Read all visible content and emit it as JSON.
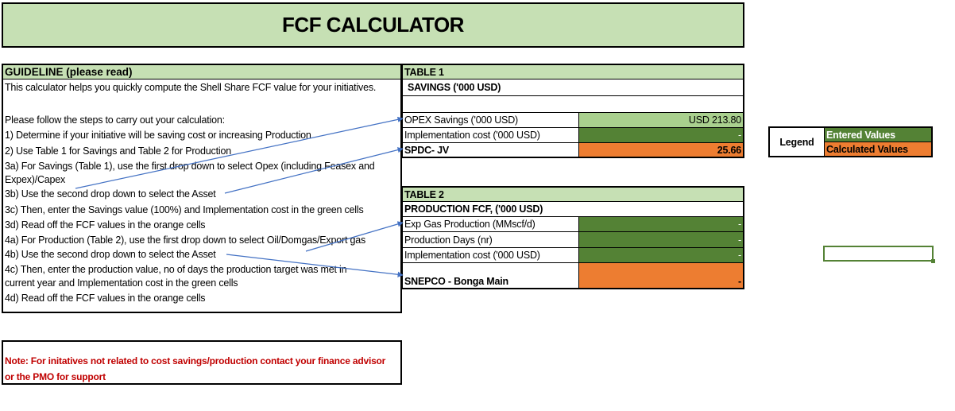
{
  "title": "FCF CALCULATOR",
  "guideline": {
    "header": "GUIDELINE (please read)",
    "lines": [
      "This calculator helps you quickly compute the Shell Share FCF value for your initiatives.",
      "Please follow the steps to carry out your calculation:",
      "1) Determine if your initiative will be saving cost or increasing Production",
      "2) Use Table 1 for Savings and Table 2 for Production",
      "3a) For Savings (Table 1), use the first drop down to select Opex (including Feasex and",
      "Expex)/Capex",
      "3b) Use the second drop down to select the Asset",
      "3c) Then, enter the Savings value (100%) and Implementation cost in the green cells",
      "3d) Read off the FCF values in the orange cells",
      "4a) For Production (Table 2), use the first drop down to select Oil/Domgas/Export gas",
      "4b) Use the second drop down to select the Asset",
      "4c) Then, enter the production value, no of days the production target was met in",
      "current year and Implementation cost in the green cells",
      "4d) Read off the FCF values in the orange cells"
    ]
  },
  "note": {
    "line1": "Note: For initatives not related to cost savings/production contact your finance advisor",
    "line2": "or the PMO for support"
  },
  "table1": {
    "title": "TABLE 1",
    "subtitle": "SAVINGS ('000 USD)",
    "rows": [
      {
        "label": "OPEX Savings ('000 USD)",
        "value": "USD 213.80"
      },
      {
        "label": "Implementation cost ('000 USD)",
        "value": "-"
      },
      {
        "label": "SPDC- JV",
        "value": "25.66"
      }
    ]
  },
  "table2": {
    "title": "TABLE 2",
    "subtitle": "PRODUCTION FCF, ('000 USD)",
    "rows": [
      {
        "label": "Exp Gas Production (MMscf/d)",
        "value": "-"
      },
      {
        "label": "Production Days (nr)",
        "value": "-"
      },
      {
        "label": "Implementation cost ('000 USD)",
        "value": "-"
      },
      {
        "label": "SNEPCO - Bonga Main",
        "value": "-"
      }
    ]
  },
  "legend": {
    "label": "Legend",
    "entered": "Entered Values",
    "calculated": "Calculated Values"
  },
  "colors": {
    "header_green": "#c6e0b4",
    "entered_green": "#548235",
    "calculated_orange": "#ed7d31",
    "light_green": "#a9d08e",
    "note_red": "#c00000",
    "arrow_blue": "#4472c4"
  }
}
